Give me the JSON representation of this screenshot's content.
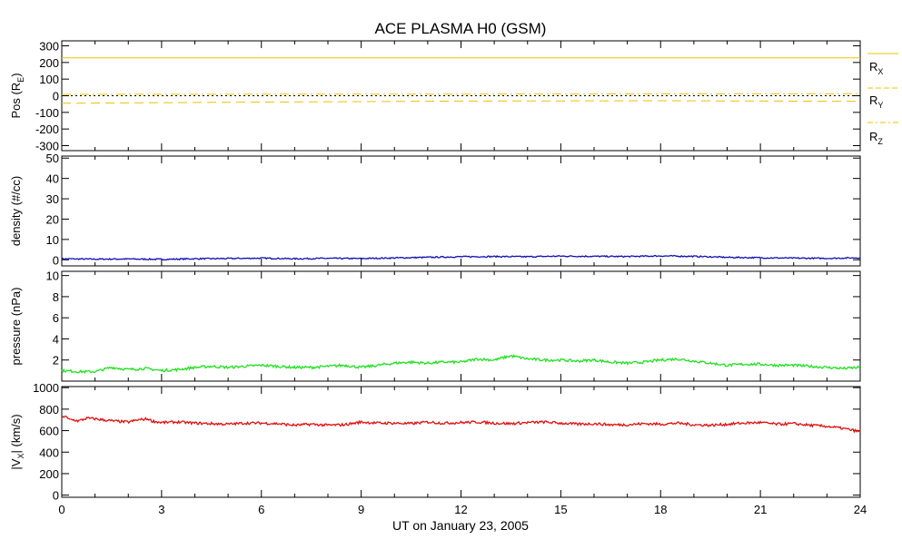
{
  "chart_data": {
    "type": "line",
    "title": "ACE PLASMA H0 (GSM)",
    "xlabel": "UT on January 23, 2005",
    "x_ticks": [
      "0",
      "3",
      "6",
      "9",
      "12",
      "15",
      "18",
      "21",
      "24"
    ],
    "xlim": [
      0,
      24
    ],
    "panels": [
      {
        "id": "pos",
        "ylabel": "Pos (R",
        "ylabel_sub": "E",
        "ylabel_end": ")",
        "ylim": [
          -330,
          330
        ],
        "y_ticks": [
          300,
          200,
          100,
          0,
          -100,
          -200,
          -300
        ],
        "zero_line": true,
        "series": [
          {
            "name": "R",
            "sub": "X",
            "color": "#f0c000",
            "dash": "solid",
            "x": [
              0,
              24
            ],
            "values": [
              228,
              228
            ]
          },
          {
            "name": "R",
            "sub": "Y",
            "color": "#f0c000",
            "dash": "dash",
            "x": [
              0,
              6,
              12,
              18,
              24
            ],
            "values": [
              -45,
              -38,
              -32,
              -30,
              -34
            ]
          },
          {
            "name": "R",
            "sub": "Z",
            "color": "#f0c000",
            "dash": "dashdot",
            "x": [
              0,
              6,
              12,
              18,
              24
            ],
            "values": [
              8,
              9,
              10,
              11,
              12
            ]
          }
        ]
      },
      {
        "id": "density",
        "ylabel": "density (#/cc)",
        "ylim": [
          -3,
          51
        ],
        "y_ticks": [
          50,
          40,
          30,
          20,
          10,
          0
        ],
        "series": [
          {
            "name": "density",
            "color": "#1010b0",
            "dash": "solid",
            "x": [
              0,
              1,
              2,
              3,
              4,
              5,
              6,
              7,
              8,
              9,
              10,
              11,
              12,
              13,
              14,
              15,
              16,
              17,
              18,
              19,
              20,
              21,
              22,
              23,
              24
            ],
            "values": [
              0.5,
              0.3,
              0.4,
              0.2,
              0.5,
              0.6,
              0.8,
              0.5,
              0.7,
              0.6,
              0.9,
              1.2,
              1.5,
              1.6,
              1.5,
              1.8,
              1.7,
              1.6,
              1.9,
              1.7,
              1.2,
              1.0,
              0.8,
              0.7,
              1.0
            ]
          }
        ]
      },
      {
        "id": "pressure",
        "ylabel": "pressure (nPa)",
        "ylim": [
          0,
          10.4
        ],
        "y_ticks": [
          10,
          8,
          6,
          4,
          2
        ],
        "series": [
          {
            "name": "pressure",
            "color": "#20e020",
            "dash": "solid",
            "x": [
              0,
              0.5,
              1,
              1.5,
              2,
              2.5,
              3,
              3.5,
              4,
              4.5,
              5,
              5.5,
              6,
              6.5,
              7,
              7.5,
              8,
              8.5,
              9,
              9.5,
              10,
              10.5,
              11,
              11.5,
              12,
              12.5,
              13,
              13.5,
              14,
              14.5,
              15,
              15.5,
              16,
              16.5,
              17,
              17.5,
              18,
              18.5,
              19,
              19.5,
              20,
              20.5,
              21,
              21.5,
              22,
              22.5,
              23,
              23.5,
              24
            ],
            "values": [
              1.0,
              0.9,
              0.9,
              1.3,
              1.1,
              1.2,
              1.0,
              1.1,
              1.3,
              1.4,
              1.3,
              1.4,
              1.5,
              1.4,
              1.3,
              1.3,
              1.4,
              1.5,
              1.3,
              1.5,
              1.7,
              1.8,
              1.7,
              1.8,
              1.8,
              2.1,
              2.0,
              2.4,
              2.1,
              2.0,
              2.0,
              1.9,
              2.0,
              1.8,
              1.7,
              1.8,
              2.0,
              2.1,
              1.9,
              1.7,
              1.5,
              1.6,
              1.6,
              1.5,
              1.5,
              1.4,
              1.3,
              1.2,
              1.3
            ]
          }
        ]
      },
      {
        "id": "vx",
        "ylabel": "|V",
        "ylabel_sub": "X",
        "ylabel_end": "| (km/s)",
        "ylim": [
          -20,
          1010
        ],
        "y_ticks": [
          1000,
          800,
          600,
          400,
          200,
          0
        ],
        "series": [
          {
            "name": "|VX|",
            "color": "#e01010",
            "dash": "solid",
            "x": [
              0,
              0.1,
              0.2,
              0.35,
              0.5,
              0.75,
              1,
              1.5,
              2,
              2.3,
              2.6,
              2.7,
              3,
              3.5,
              4,
              4.5,
              5,
              5.5,
              6,
              6.5,
              7,
              7.5,
              8,
              8.5,
              9,
              9.5,
              10,
              10.5,
              11,
              11.5,
              12,
              12.5,
              13,
              13.5,
              14,
              14.5,
              15,
              15.5,
              16,
              16.5,
              17,
              17.5,
              18,
              18.5,
              19,
              19.5,
              20,
              20.5,
              21,
              21.5,
              22,
              22.5,
              23,
              23.5,
              24
            ],
            "values": [
              720,
              740,
              705,
              700,
              690,
              715,
              710,
              690,
              680,
              700,
              710,
              690,
              675,
              680,
              670,
              665,
              660,
              670,
              670,
              665,
              650,
              660,
              650,
              655,
              680,
              670,
              670,
              665,
              680,
              670,
              675,
              680,
              670,
              665,
              675,
              680,
              670,
              660,
              665,
              655,
              655,
              665,
              660,
              670,
              655,
              650,
              660,
              670,
              675,
              660,
              665,
              650,
              640,
              620,
              590
            ]
          }
        ]
      }
    ]
  }
}
